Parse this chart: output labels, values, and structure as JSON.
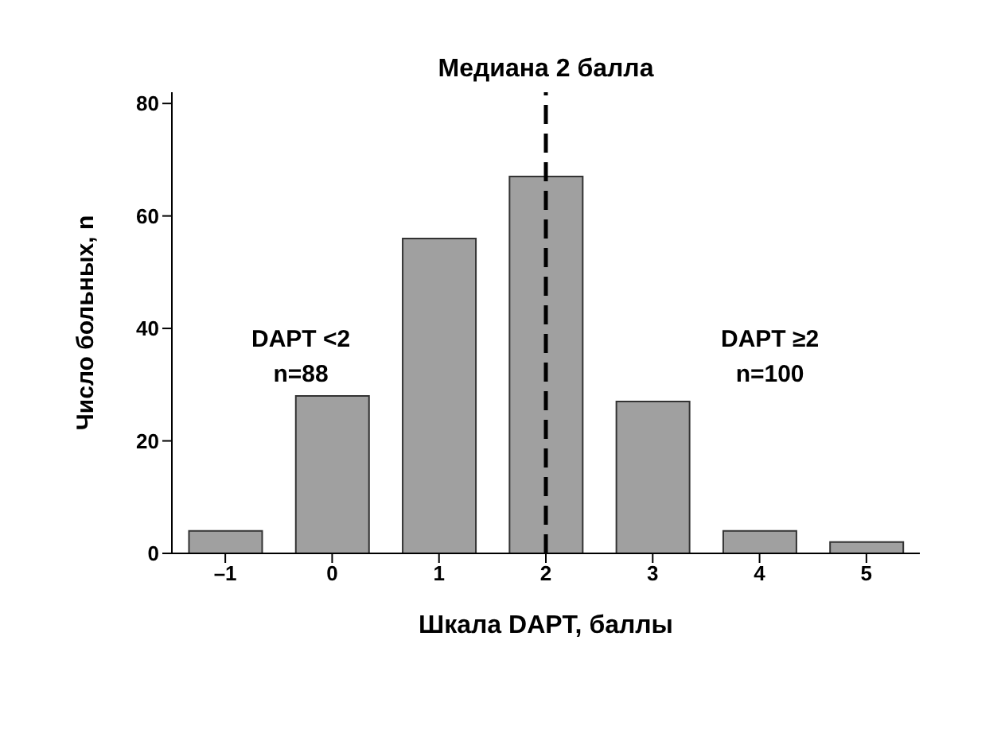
{
  "chart_data": {
    "type": "bar",
    "xlabel": "Шкала DAPT, баллы",
    "ylabel": "Число больных, n",
    "categories": [
      "–1",
      "0",
      "1",
      "2",
      "3",
      "4",
      "5"
    ],
    "values": [
      4,
      28,
      56,
      67,
      27,
      4,
      2
    ],
    "color": "#a0a0a0",
    "ylim": [
      0,
      82
    ],
    "yticks": [
      0,
      20,
      40,
      60,
      80
    ],
    "grid": false,
    "legend": false,
    "ref_lines": [
      {
        "axis": "x",
        "value": "2",
        "label": "Медиана 2 балла",
        "color": "#000000",
        "line_style": "dashed"
      }
    ],
    "annotations": [
      "DAPT <2\nn=88",
      "DAPT ≥2\nn=100"
    ]
  }
}
